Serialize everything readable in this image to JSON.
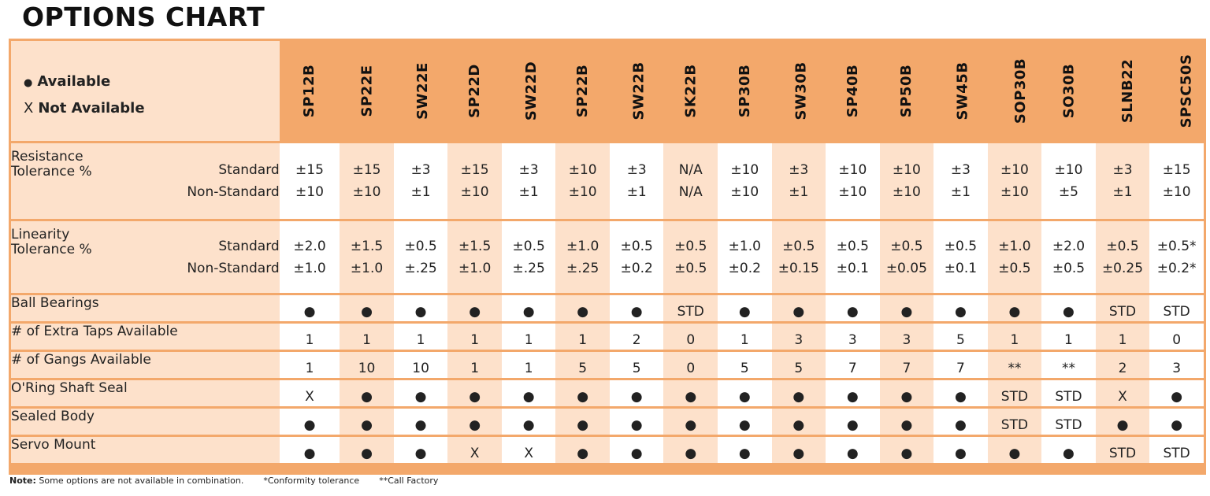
{
  "title": "OPTIONS CHART",
  "legend": {
    "available_symbol": "●",
    "available_label": "Available",
    "not_available_symbol": "X",
    "not_available_label": "Not Available"
  },
  "models": [
    "SP12B",
    "SP22E",
    "SW22E",
    "SP22D",
    "SW22D",
    "SP22B",
    "SW22B",
    "SK22B",
    "SP30B",
    "SW30B",
    "SP40B",
    "SP50B",
    "SW45B",
    "SOP30B",
    "SO30B",
    "SLNB22",
    "SPSC50S"
  ],
  "resistance": {
    "label_line1": "Resistance",
    "label_line2": "Tolerance %",
    "standard_label": "Standard",
    "nonstandard_label": "Non-Standard",
    "standard": [
      "±15",
      "±15",
      "±3",
      "±15",
      "±3",
      "±10",
      "±3",
      "N/A",
      "±10",
      "±3",
      "±10",
      "±10",
      "±3",
      "±10",
      "±10",
      "±3",
      "±15"
    ],
    "nonstandard": [
      "±10",
      "±10",
      "±1",
      "±10",
      "±1",
      "±10",
      "±1",
      "N/A",
      "±10",
      "±1",
      "±10",
      "±10",
      "±1",
      "±10",
      "±5",
      "±1",
      "±10"
    ]
  },
  "linearity": {
    "label_line1": "Linearity",
    "label_line2": "Tolerance %",
    "standard_label": "Standard",
    "nonstandard_label": "Non-Standard",
    "standard": [
      "±2.0",
      "±1.5",
      "±0.5",
      "±1.5",
      "±0.5",
      "±1.0",
      "±0.5",
      "±0.5",
      "±1.0",
      "±0.5",
      "±0.5",
      "±0.5",
      "±0.5",
      "±1.0",
      "±2.0",
      "±0.5",
      "±0.5*"
    ],
    "nonstandard": [
      "±1.0",
      "±1.0",
      "±.25",
      "±1.0",
      "±.25",
      "±.25",
      "±0.2",
      "±0.5",
      "±0.2",
      "±0.15",
      "±0.1",
      "±0.05",
      "±0.1",
      "±0.5",
      "±0.5",
      "±0.25",
      "±0.2*"
    ]
  },
  "rows": [
    {
      "label": "Ball Bearings",
      "values": [
        "●",
        "●",
        "●",
        "●",
        "●",
        "●",
        "●",
        "STD",
        "●",
        "●",
        "●",
        "●",
        "●",
        "●",
        "●",
        "STD",
        "STD"
      ]
    },
    {
      "label": "# of Extra Taps Available",
      "values": [
        "1",
        "1",
        "1",
        "1",
        "1",
        "1",
        "2",
        "0",
        "1",
        "3",
        "3",
        "3",
        "5",
        "1",
        "1",
        "1",
        "0"
      ]
    },
    {
      "label": "# of Gangs Available",
      "values": [
        "1",
        "10",
        "10",
        "1",
        "1",
        "5",
        "5",
        "0",
        "5",
        "5",
        "7",
        "7",
        "7",
        "**",
        "**",
        "2",
        "3"
      ]
    },
    {
      "label": "O'Ring Shaft Seal",
      "values": [
        "X",
        "●",
        "●",
        "●",
        "●",
        "●",
        "●",
        "●",
        "●",
        "●",
        "●",
        "●",
        "●",
        "STD",
        "STD",
        "X",
        "●"
      ]
    },
    {
      "label": "Sealed Body",
      "values": [
        "●",
        "●",
        "●",
        "●",
        "●",
        "●",
        "●",
        "●",
        "●",
        "●",
        "●",
        "●",
        "●",
        "STD",
        "STD",
        "●",
        "●"
      ]
    },
    {
      "label": "Servo Mount",
      "values": [
        "●",
        "●",
        "●",
        "X",
        "X",
        "●",
        "●",
        "●",
        "●",
        "●",
        "●",
        "●",
        "●",
        "●",
        "●",
        "STD",
        "STD"
      ]
    }
  ],
  "note": {
    "prefix": "Note:",
    "text": "Some options are not available in combination.",
    "conformity": "*Conformity tolerance",
    "call_factory": "**Call Factory"
  },
  "colors": {
    "border": "#f3a86b",
    "band": "#fde1cb",
    "white": "#ffffff"
  }
}
